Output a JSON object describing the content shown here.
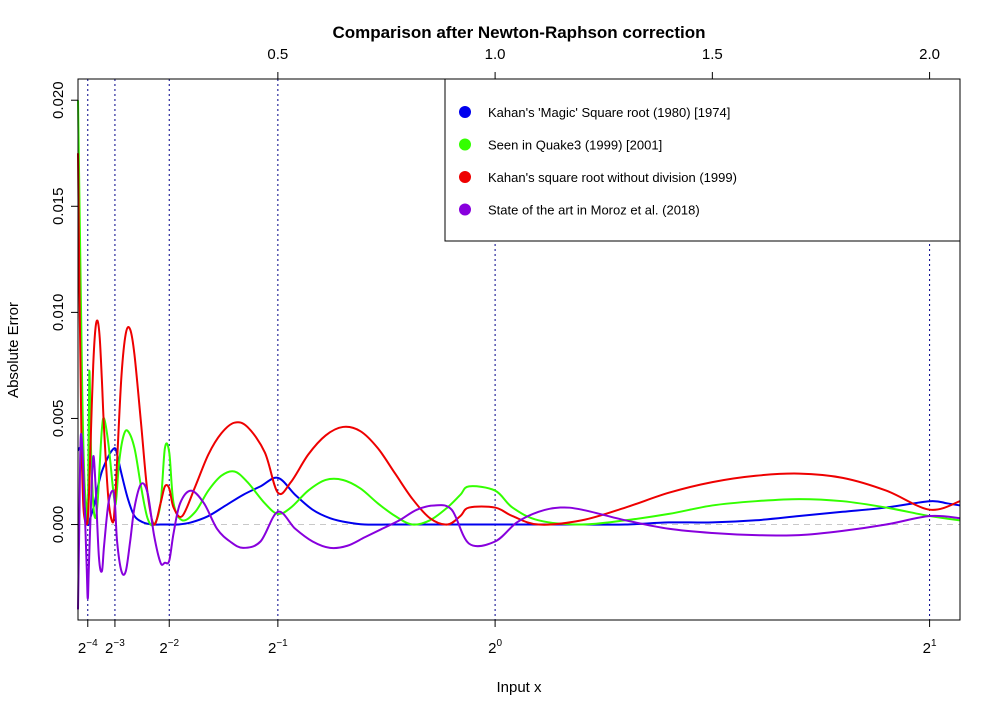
{
  "chart_data": {
    "type": "line",
    "title": "Comparison after Newton-Raphson correction",
    "xlabel": "Input x",
    "ylabel": "Absolute Error",
    "xlim": [
      0.04,
      2.07
    ],
    "ylim": [
      -0.0045,
      0.021
    ],
    "x_ticks_bottom": [
      {
        "value": 0.0625,
        "base": "2",
        "exp": "−4"
      },
      {
        "value": 0.125,
        "base": "2",
        "exp": "−3"
      },
      {
        "value": 0.25,
        "base": "2",
        "exp": "−2"
      },
      {
        "value": 0.5,
        "base": "2",
        "exp": "−1"
      },
      {
        "value": 1.0,
        "base": "2",
        "exp": "0"
      },
      {
        "value": 2.0,
        "base": "2",
        "exp": "1"
      }
    ],
    "x_ticks_top": [
      {
        "value": 0.5,
        "label": "0.5"
      },
      {
        "value": 1.0,
        "label": "1.0"
      },
      {
        "value": 1.5,
        "label": "1.5"
      },
      {
        "value": 2.0,
        "label": "2.0"
      }
    ],
    "y_ticks": [
      {
        "value": 0.0,
        "label": "0.000"
      },
      {
        "value": 0.005,
        "label": "0.005"
      },
      {
        "value": 0.01,
        "label": "0.010"
      },
      {
        "value": 0.015,
        "label": "0.015"
      },
      {
        "value": 0.02,
        "label": "0.020"
      }
    ],
    "vlines": [
      0.0625,
      0.125,
      0.25,
      0.5,
      1.0,
      2.0
    ],
    "hline": 0.0,
    "grid": false,
    "legend_position": "top-right",
    "series": [
      {
        "name": "Kahan's 'Magic' Square root (1980) [1974]",
        "color": "#0000ee",
        "x": [
          0.04,
          0.047,
          0.055,
          0.0625,
          0.068,
          0.077,
          0.086,
          0.095,
          0.105,
          0.115,
          0.125,
          0.13,
          0.14,
          0.155,
          0.17,
          0.19,
          0.21,
          0.23,
          0.25,
          0.27,
          0.3,
          0.34,
          0.38,
          0.42,
          0.46,
          0.5,
          0.54,
          0.58,
          0.62,
          0.66,
          0.7,
          0.76,
          0.82,
          0.88,
          0.94,
          1.0,
          1.1,
          1.2,
          1.3,
          1.4,
          1.5,
          1.6,
          1.7,
          1.8,
          1.9,
          2.0,
          2.04,
          2.07
        ],
        "y": [
          0.0035,
          0.0034,
          0.001,
          0.0,
          0.0003,
          0.0009,
          0.0018,
          0.0025,
          0.003,
          0.0034,
          0.0036,
          0.0033,
          0.0024,
          0.0012,
          0.0004,
          0.0001,
          0.0,
          0.0,
          0.0,
          0.0,
          0.0001,
          0.0004,
          0.0009,
          0.0014,
          0.0018,
          0.0022,
          0.0014,
          0.0007,
          0.0003,
          0.0001,
          0.0,
          0.0,
          0.0,
          0.0,
          0.0,
          0.0,
          0.0,
          0.0,
          0.0,
          0.0001,
          0.0001,
          0.0002,
          0.0004,
          0.0006,
          0.0008,
          0.0011,
          0.001,
          0.0009
        ]
      },
      {
        "name": "Seen in Quake3 (1999) [2001]",
        "color": "#33ff00",
        "x": [
          0.04,
          0.045,
          0.05,
          0.055,
          0.06,
          0.063,
          0.066,
          0.07,
          0.075,
          0.08,
          0.085,
          0.09,
          0.095,
          0.1,
          0.11,
          0.12,
          0.125,
          0.128,
          0.135,
          0.145,
          0.155,
          0.17,
          0.185,
          0.2,
          0.215,
          0.23,
          0.24,
          0.25,
          0.26,
          0.28,
          0.31,
          0.34,
          0.37,
          0.4,
          0.43,
          0.47,
          0.5,
          0.53,
          0.57,
          0.61,
          0.65,
          0.69,
          0.73,
          0.77,
          0.81,
          0.85,
          0.89,
          0.92,
          0.94,
          1.0,
          1.04,
          1.1,
          1.2,
          1.3,
          1.4,
          1.5,
          1.6,
          1.7,
          1.8,
          1.9,
          2.0,
          2.07
        ],
        "y": [
          0.02,
          0.013,
          0.006,
          0.002,
          0.0008,
          0.0005,
          0.0072,
          0.0035,
          0.001,
          0.0003,
          0.001,
          0.0028,
          0.0045,
          0.005,
          0.0038,
          0.0018,
          0.001,
          0.0012,
          0.003,
          0.0042,
          0.0044,
          0.0036,
          0.0018,
          0.0003,
          0.0,
          0.001,
          0.0036,
          0.0034,
          0.001,
          0.0002,
          0.0006,
          0.0016,
          0.0023,
          0.0025,
          0.002,
          0.001,
          0.0005,
          0.0008,
          0.0016,
          0.0021,
          0.0021,
          0.0017,
          0.001,
          0.0004,
          0.0,
          0.0002,
          0.0008,
          0.0014,
          0.0018,
          0.0016,
          0.0008,
          0.0002,
          0.0,
          0.0002,
          0.0005,
          0.0009,
          0.0011,
          0.0012,
          0.0011,
          0.0008,
          0.0004,
          0.0002
        ]
      },
      {
        "name": "Kahan's square root without division (1999)",
        "color": "#ee0000",
        "x": [
          0.04,
          0.044,
          0.048,
          0.052,
          0.056,
          0.06,
          0.0625,
          0.066,
          0.07,
          0.075,
          0.08,
          0.085,
          0.09,
          0.095,
          0.1,
          0.11,
          0.12,
          0.125,
          0.13,
          0.14,
          0.15,
          0.16,
          0.17,
          0.185,
          0.2,
          0.215,
          0.23,
          0.24,
          0.25,
          0.26,
          0.28,
          0.31,
          0.34,
          0.37,
          0.4,
          0.43,
          0.47,
          0.5,
          0.53,
          0.57,
          0.61,
          0.65,
          0.69,
          0.73,
          0.77,
          0.81,
          0.85,
          0.89,
          0.92,
          0.94,
          1.0,
          1.04,
          1.1,
          1.2,
          1.3,
          1.4,
          1.5,
          1.6,
          1.7,
          1.8,
          1.9,
          2.0,
          2.07
        ],
        "y": [
          0.0175,
          0.01,
          0.004,
          0.001,
          0.0002,
          0.0,
          0.0003,
          0.0018,
          0.0045,
          0.0075,
          0.0092,
          0.0096,
          0.0088,
          0.0068,
          0.0045,
          0.0012,
          0.0001,
          0.001,
          0.003,
          0.007,
          0.009,
          0.0092,
          0.008,
          0.0048,
          0.0015,
          0.0,
          0.001,
          0.0018,
          0.0017,
          0.0008,
          0.0004,
          0.0018,
          0.0033,
          0.0043,
          0.0048,
          0.0046,
          0.0034,
          0.0015,
          0.002,
          0.0033,
          0.0042,
          0.0046,
          0.0044,
          0.0036,
          0.0024,
          0.0012,
          0.0003,
          0.0,
          0.0004,
          0.0008,
          0.0008,
          0.0004,
          0.0,
          0.0002,
          0.0008,
          0.0015,
          0.002,
          0.0023,
          0.0024,
          0.0022,
          0.0016,
          0.0007,
          0.0011
        ]
      },
      {
        "name": "State of the art in Moroz et al. (2018)",
        "color": "#8800dd",
        "x": [
          0.04,
          0.043,
          0.046,
          0.05,
          0.055,
          0.06,
          0.0625,
          0.065,
          0.07,
          0.075,
          0.08,
          0.088,
          0.095,
          0.1,
          0.11,
          0.12,
          0.125,
          0.13,
          0.14,
          0.15,
          0.16,
          0.17,
          0.185,
          0.2,
          0.215,
          0.23,
          0.24,
          0.25,
          0.26,
          0.275,
          0.3,
          0.33,
          0.36,
          0.39,
          0.42,
          0.46,
          0.5,
          0.54,
          0.58,
          0.62,
          0.66,
          0.7,
          0.74,
          0.78,
          0.82,
          0.86,
          0.9,
          0.94,
          1.0,
          1.05,
          1.1,
          1.15,
          1.2,
          1.3,
          1.4,
          1.5,
          1.6,
          1.7,
          1.8,
          1.9,
          2.0,
          2.07
        ],
        "y": [
          -0.004,
          0.0,
          0.004,
          0.0036,
          0.001,
          -0.002,
          -0.0035,
          -0.002,
          0.001,
          0.0032,
          0.002,
          -0.0015,
          -0.0022,
          -0.001,
          0.001,
          0.0016,
          0.001,
          -0.0008,
          -0.0022,
          -0.0022,
          -0.0008,
          0.0008,
          0.0019,
          0.0015,
          -0.0005,
          -0.0018,
          -0.0018,
          -0.0017,
          -0.0004,
          0.001,
          0.0016,
          0.001,
          -0.0002,
          -0.0008,
          -0.0011,
          -0.0008,
          0.0006,
          -0.0002,
          -0.0008,
          -0.0011,
          -0.001,
          -0.0006,
          -0.0002,
          0.0002,
          0.0007,
          0.0009,
          0.0007,
          -0.0009,
          -0.0008,
          0.0001,
          0.0006,
          0.0008,
          0.0007,
          0.0002,
          -0.0002,
          -0.0004,
          -0.0005,
          -0.0005,
          -0.0003,
          0.0,
          0.0004,
          0.0003
        ]
      }
    ]
  }
}
